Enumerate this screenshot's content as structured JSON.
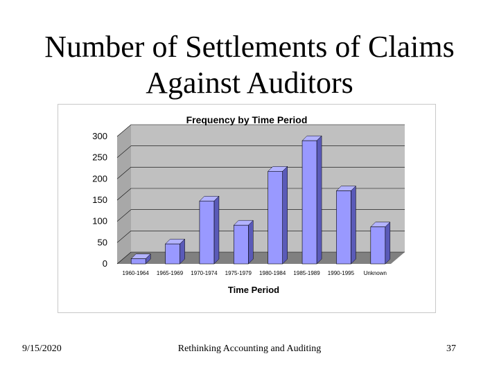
{
  "slide": {
    "title_line1": "Number of Settlements of Claims",
    "title_line2": "Against Auditors"
  },
  "footer": {
    "date": "9/15/2020",
    "center": "Rethinking Accounting and Auditing",
    "page": "37"
  },
  "colors": {
    "bar_front": "#9999ff",
    "bar_side": "#5a5ab8",
    "bar_top": "#b3b3ff",
    "wall": "#c0c0c0",
    "floor": "#808080",
    "grid": "#000000"
  },
  "chart_data": {
    "type": "bar",
    "title": "Frequency by Time Period",
    "xlabel": "Time Period",
    "ylabel": "",
    "categories": [
      "1960-1964",
      "1965-1969",
      "1970-1974",
      "1975-1979",
      "1980-1984",
      "1985-1989",
      "1990-1995",
      "Unknown"
    ],
    "values": [
      12,
      47,
      148,
      91,
      218,
      290,
      172,
      87
    ],
    "ylim": [
      0,
      300
    ],
    "yticks": [
      0,
      50,
      100,
      150,
      200,
      250,
      300
    ],
    "grid": true,
    "legend": "none",
    "style": "3d-column"
  }
}
